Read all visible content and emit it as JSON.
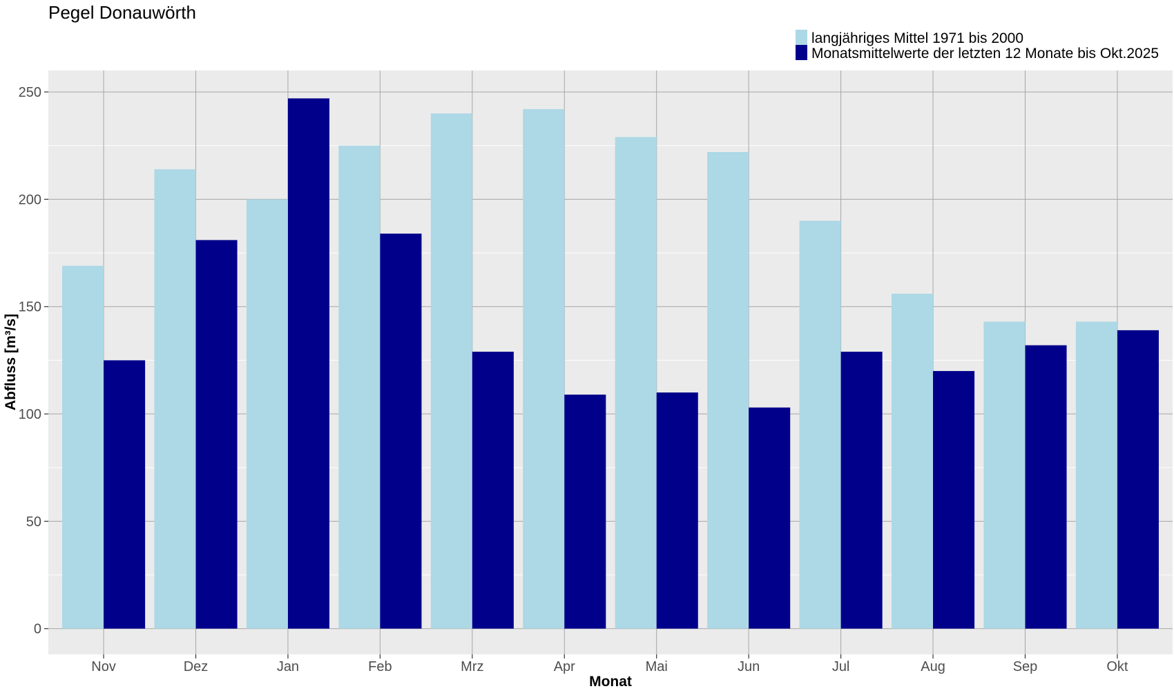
{
  "chart_data": {
    "type": "bar",
    "title": "Pegel Donauwörth",
    "xlabel": "Monat",
    "ylabel": "Abfluss [m³/s]",
    "ylim": [
      -12,
      260
    ],
    "yticks": [
      0,
      50,
      100,
      150,
      200,
      250
    ],
    "grid": true,
    "legend_position": "top-right",
    "categories": [
      "Nov",
      "Dez",
      "Jan",
      "Feb",
      "Mrz",
      "Apr",
      "Mai",
      "Jun",
      "Jul",
      "Aug",
      "Sep",
      "Okt"
    ],
    "series": [
      {
        "name": "langjähriges Mittel 1971 bis 2000",
        "color": "#add8e6",
        "values": [
          169,
          214,
          200,
          225,
          240,
          242,
          229,
          222,
          190,
          156,
          143,
          143
        ]
      },
      {
        "name": "Monatsmittelwerte der letzten 12 Monate bis Okt.2025",
        "color": "#00008b",
        "values": [
          125,
          181,
          247,
          184,
          129,
          109,
          110,
          103,
          129,
          120,
          132,
          139
        ]
      }
    ],
    "panel_background": "#ebebeb",
    "grid_major_color": "#a6a6a6",
    "grid_minor_color": "#ffffff"
  }
}
